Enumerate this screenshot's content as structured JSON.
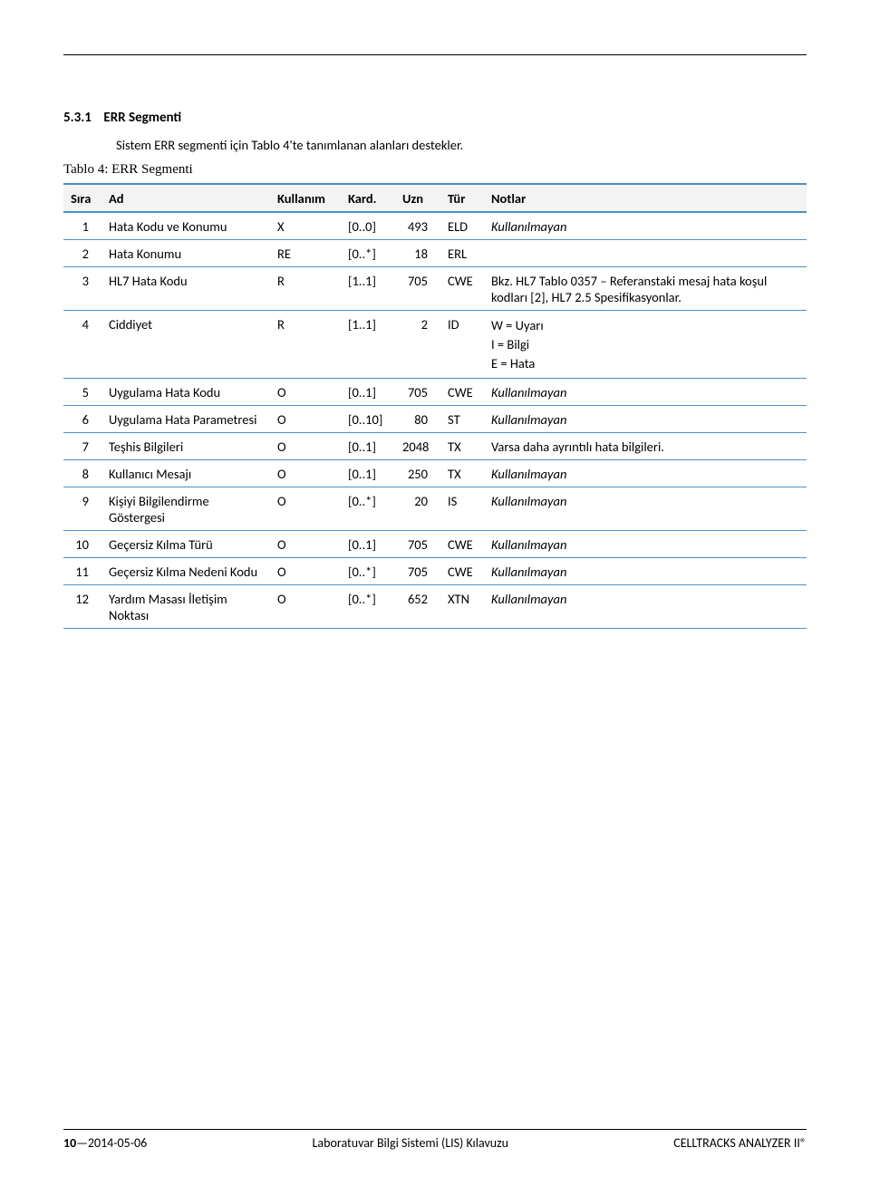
{
  "section": {
    "number": "5.3.1",
    "title": "ERR Segmenti",
    "intro": "Sistem ERR segmenti için Tablo 4'te tanımlanan alanları destekler.",
    "table_caption": "Tablo 4: ERR Segmenti"
  },
  "table": {
    "headers": {
      "sira": "Sıra",
      "ad": "Ad",
      "kullanim": "Kullanım",
      "kard": "Kard.",
      "uzn": "Uzn",
      "tur": "Tür",
      "notlar": "Notlar"
    },
    "rows": [
      {
        "sira": "1",
        "ad": "Hata Kodu ve Konumu",
        "kul": "X",
        "kard": "[0..0]",
        "uzn": "493",
        "tur": "ELD",
        "not": "Kullanılmayan",
        "italic": true
      },
      {
        "sira": "2",
        "ad": "Hata Konumu",
        "kul": "RE",
        "kard": "[0..*]",
        "uzn": "18",
        "tur": "ERL",
        "not": "",
        "italic": false
      },
      {
        "sira": "3",
        "ad": "HL7 Hata Kodu",
        "kul": "R",
        "kard": "[1..1]",
        "uzn": "705",
        "tur": "CWE",
        "not": "Bkz. HL7 Tablo 0357 – Referanstaki mesaj hata koşul kodları [2], HL7 2.5 Spesifikasyonlar.",
        "italic": false
      },
      {
        "sira": "4",
        "ad": "Ciddiyet",
        "kul": "R",
        "kard": "[1..1]",
        "uzn": "2",
        "tur": "ID",
        "not": "W = Uyarı\nI = Bilgi\nE = Hata",
        "italic": false
      },
      {
        "sira": "5",
        "ad": "Uygulama Hata Kodu",
        "kul": "O",
        "kard": "[0..1]",
        "uzn": "705",
        "tur": "CWE",
        "not": "Kullanılmayan",
        "italic": true
      },
      {
        "sira": "6",
        "ad": "Uygulama Hata Parametresi",
        "kul": "O",
        "kard": "[0..10]",
        "uzn": "80",
        "tur": "ST",
        "not": "Kullanılmayan",
        "italic": true
      },
      {
        "sira": "7",
        "ad": "Teşhis Bilgileri",
        "kul": "O",
        "kard": "[0..1]",
        "uzn": "2048",
        "tur": "TX",
        "not": "Varsa daha ayrıntılı hata bilgileri.",
        "italic": false
      },
      {
        "sira": "8",
        "ad": "Kullanıcı Mesajı",
        "kul": "O",
        "kard": "[0..1]",
        "uzn": "250",
        "tur": "TX",
        "not": "Kullanılmayan",
        "italic": true
      },
      {
        "sira": "9",
        "ad": "Kişiyi Bilgilendirme Göstergesi",
        "kul": "O",
        "kard": "[0..*]",
        "uzn": "20",
        "tur": "IS",
        "not": "Kullanılmayan",
        "italic": true
      },
      {
        "sira": "10",
        "ad": "Geçersiz Kılma Türü",
        "kul": "O",
        "kard": "[0..1]",
        "uzn": "705",
        "tur": "CWE",
        "not": "Kullanılmayan",
        "italic": true
      },
      {
        "sira": "11",
        "ad": "Geçersiz Kılma Nedeni Kodu",
        "kul": "O",
        "kard": "[0..*]",
        "uzn": "705",
        "tur": "CWE",
        "not": "Kullanılmayan",
        "italic": true
      },
      {
        "sira": "12",
        "ad": "Yardım Masası İletişim Noktası",
        "kul": "O",
        "kard": "[0..*]",
        "uzn": "652",
        "tur": "XTN",
        "not": "Kullanılmayan",
        "italic": true
      }
    ]
  },
  "footer": {
    "page_left_prefix": "10",
    "date": "—2014-05-06",
    "center": "Laboratuvar Bilgi Sistemi (LIS) Kılavuzu",
    "right": "CELLTRACKS ANALYZER II®"
  },
  "colors": {
    "rule": "#4a90c9",
    "header_bg": "#f3f3f3"
  }
}
